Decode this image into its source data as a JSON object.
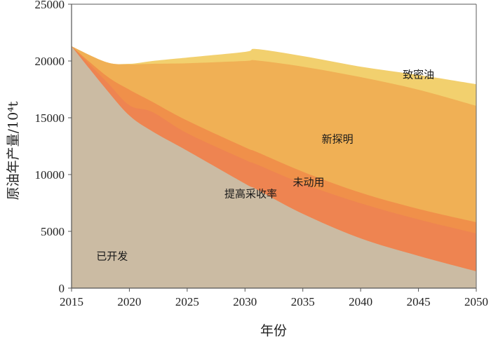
{
  "chart_data": {
    "type": "area",
    "stacked": true,
    "xlabel": "年份",
    "ylabel": "原油年产量/10⁴t",
    "xlim": [
      2015,
      2050
    ],
    "ylim": [
      0,
      25000
    ],
    "xticks": [
      "2015",
      "2020",
      "2025",
      "2030",
      "2035",
      "2040",
      "2045",
      "2050"
    ],
    "yticks": [
      "0",
      "5000",
      "10000",
      "15000",
      "20000",
      "25000"
    ],
    "grid": false,
    "x": [
      2015,
      2018,
      2020,
      2022,
      2025,
      2030,
      2031,
      2035,
      2040,
      2045,
      2050
    ],
    "series": [
      {
        "name": "已开发",
        "color": "#cbbba3",
        "values": [
          21300,
          17500,
          15200,
          13800,
          12100,
          9200,
          8700,
          6540,
          4380,
          2840,
          1480
        ]
      },
      {
        "name": "提高采收率",
        "color": "#ee8451",
        "values": [
          0,
          700,
          900,
          1700,
          1540,
          2100,
          2200,
          2660,
          3090,
          3210,
          3330
        ]
      },
      {
        "name": "未动用",
        "color": "#f0904a",
        "values": [
          0,
          500,
          1370,
          900,
          1110,
          1100,
          1100,
          1050,
          930,
          925,
          990
        ]
      },
      {
        "name": "新探明",
        "color": "#f0b055",
        "values": [
          0,
          1200,
          2230,
          3350,
          5050,
          7600,
          8050,
          9250,
          10180,
          10495,
          10250
        ]
      },
      {
        "name": "致密油",
        "color": "#f2d06e",
        "values": [
          0,
          0,
          50,
          250,
          500,
          800,
          1000,
          930,
          920,
          1300,
          1910
        ]
      }
    ],
    "annotations": [
      {
        "text": "已开发",
        "x": 2018.5,
        "y": 2500
      },
      {
        "text": "提高采收率",
        "x": 2030.5,
        "y": 8000
      },
      {
        "text": "未动用",
        "x": 2035.5,
        "y": 9000
      },
      {
        "text": "新探明",
        "x": 2038,
        "y": 12800
      },
      {
        "text": "致密油",
        "x": 2045,
        "y": 18500
      }
    ]
  }
}
